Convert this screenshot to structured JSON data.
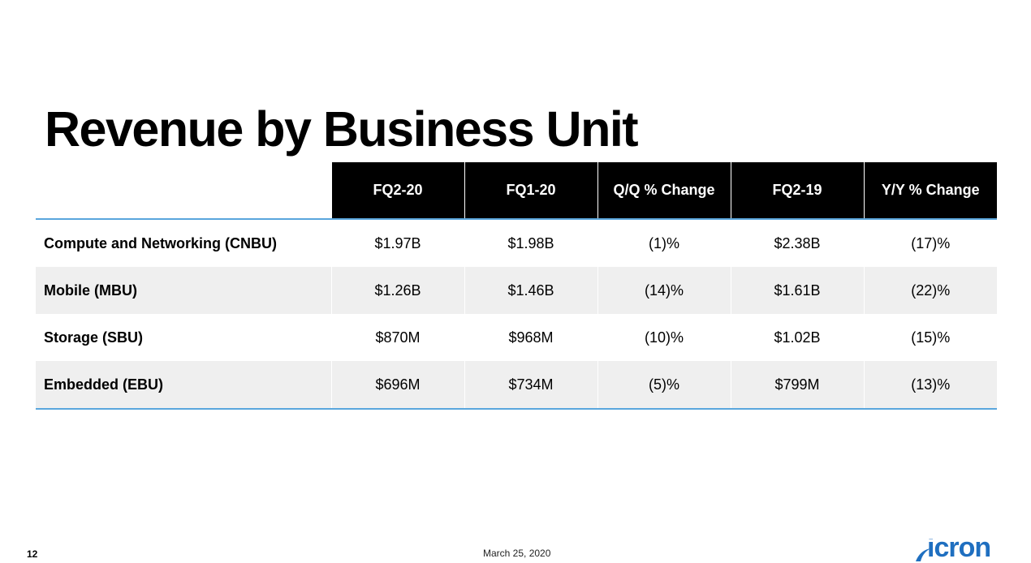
{
  "slide": {
    "title": "Revenue by Business Unit",
    "page_number": "12",
    "date": "March 25, 2020",
    "logo": {
      "text": "icron",
      "color": "#1f6fc0"
    }
  },
  "table": {
    "headers": [
      "FQ2-20",
      "FQ1-20",
      "Q/Q % Change",
      "FQ2-19",
      "Y/Y % Change"
    ],
    "rows": [
      {
        "label": "Compute and Networking (CNBU)",
        "values": [
          "$1.97B",
          "$1.98B",
          "(1)%",
          "$2.38B",
          "(17)%"
        ]
      },
      {
        "label": "Mobile (MBU)",
        "values": [
          "$1.26B",
          "$1.46B",
          "(14)%",
          "$1.61B",
          "(22)%"
        ]
      },
      {
        "label": "Storage (SBU)",
        "values": [
          "$870M",
          "$968M",
          "(10)%",
          "$1.02B",
          "(15)%"
        ]
      },
      {
        "label": "Embedded (EBU)",
        "values": [
          "$696M",
          "$734M",
          "(5)%",
          "$799M",
          "(13)%"
        ]
      }
    ]
  },
  "colors": {
    "header_bg": "#000000",
    "rule": "#5aa6dd",
    "shaded_row": "#efefef"
  }
}
